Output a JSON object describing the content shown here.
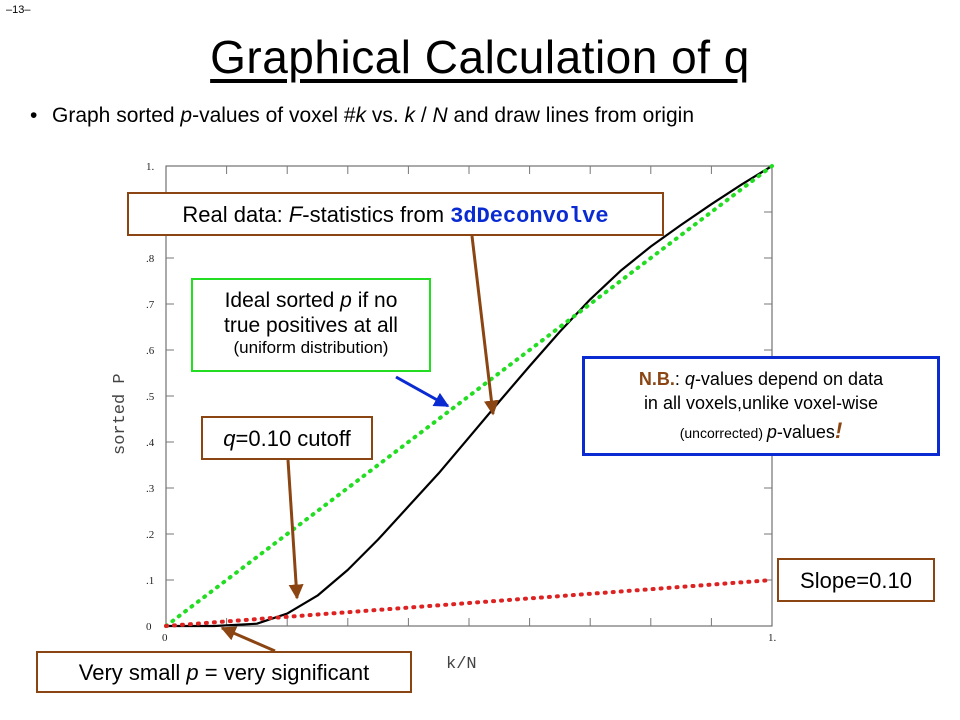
{
  "slide": {
    "number": "–13–",
    "title": "Graphical Calculation of q"
  },
  "bullet": {
    "text_a": "Graph sorted ",
    "text_p": "p",
    "text_b": "-values of voxel #",
    "text_k": "k",
    "text_c": " vs. ",
    "text_k2": "k",
    "text_d": " / ",
    "text_n": "N",
    "text_e": " and draw lines from origin"
  },
  "callouts": {
    "real_data": {
      "prefix": "Real data: ",
      "f": "F",
      "middle": "-statistics from ",
      "code": "3dDeconvolve"
    },
    "ideal": {
      "line1_a": "Ideal sorted ",
      "line1_p": "p",
      "line1_b": " if no",
      "line2": "true positives at all",
      "line3": "(uniform distribution)"
    },
    "cutoff": {
      "q": "q",
      "rest": "=0.10 cutoff"
    },
    "nb": {
      "bold": "N.B.",
      "a": ": ",
      "q": "q",
      "b": "-values depend on data",
      "line2": "in all voxels,unlike voxel-wise",
      "small": "(uncorrected) ",
      "p": "p",
      "c": "-values",
      "bang": "!"
    },
    "slope": {
      "text": "Slope=0.10"
    },
    "small_p": {
      "a": "Very small ",
      "p": "p",
      "b": " = very significant"
    }
  },
  "colors": {
    "green": "#22dd22",
    "red": "#dd2222",
    "brown": "#8b4513",
    "blue": "#0a2bd1",
    "curve": "#000000"
  },
  "chart_data": {
    "type": "line",
    "xlabel": "k/N",
    "ylabel": "sorted P",
    "xlim": [
      0,
      1
    ],
    "ylim": [
      0,
      1
    ],
    "x_tick_labels": [
      "0",
      "1."
    ],
    "y_tick_labels": [
      "0",
      ".1",
      ".2",
      ".3",
      ".4",
      ".5",
      ".6",
      ".7",
      ".8",
      "1."
    ],
    "series": [
      {
        "style": "solid",
        "x": [
          0.0,
          0.08,
          0.15,
          0.2,
          0.25,
          0.3,
          0.35,
          0.4,
          0.45,
          0.5,
          0.55,
          0.6,
          0.65,
          0.7,
          0.75,
          0.8,
          0.85,
          0.9,
          0.95,
          1.0
        ],
        "y": [
          0.0,
          0.0,
          0.005,
          0.027,
          0.066,
          0.122,
          0.188,
          0.26,
          0.332,
          0.41,
          0.488,
          0.565,
          0.64,
          0.71,
          0.772,
          0.825,
          0.872,
          0.917,
          0.96,
          1.0
        ]
      },
      {
        "style": "dotted-green",
        "x": [
          0,
          1
        ],
        "y": [
          0,
          1
        ]
      },
      {
        "style": "dotted-red",
        "x": [
          0,
          1
        ],
        "y": [
          0,
          0.1
        ]
      }
    ]
  }
}
